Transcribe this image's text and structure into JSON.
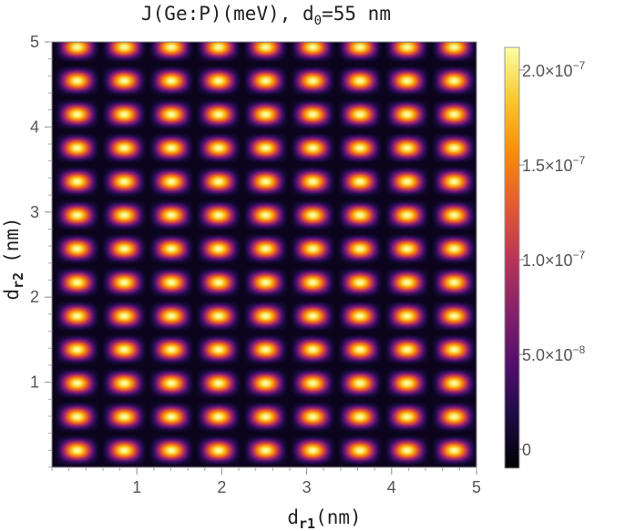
{
  "chart_data": {
    "type": "heatmap",
    "title": {
      "text": "J(Ge:P)(meV), d",
      "sub": "0",
      "tail": "=55 nm"
    },
    "xlabel": {
      "base": "d",
      "sub": "r1",
      "unit": "(nm)"
    },
    "ylabel": {
      "base": "d",
      "sub": "r2",
      "unit": "(nm)"
    },
    "xlim": [
      0,
      5
    ],
    "ylim": [
      0,
      5
    ],
    "xticks": [
      1,
      2,
      3,
      4,
      5
    ],
    "xtick_labels": [
      "1",
      "2",
      "3",
      "4",
      "5"
    ],
    "yticks": [
      1,
      2,
      3,
      4,
      5
    ],
    "ytick_labels": [
      "1",
      "2",
      "3",
      "4",
      "5"
    ],
    "colorbar": {
      "colormap": "inferno",
      "range": [
        -1e-08,
        2.12e-07
      ],
      "ticks": [
        {
          "value": 0,
          "label": "0",
          "exp": ""
        },
        {
          "value": 5e-08,
          "label": "5.0×10",
          "exp": "−8"
        },
        {
          "value": 1e-07,
          "label": "1.0×10",
          "exp": "−7"
        },
        {
          "value": 1.5e-07,
          "label": "1.5×10",
          "exp": "−7"
        },
        {
          "value": 2e-07,
          "label": "2.0×10",
          "exp": "−7"
        }
      ]
    },
    "pattern": {
      "description_free_params": true,
      "x_period_nm": 0.555,
      "x_phase_nm": 0.02,
      "y_period_nm": 0.395,
      "y_phase_nm": 0.0,
      "peak_value": 2.12e-07,
      "x_exponent": 2.0,
      "y_exponent": 2.4
    }
  },
  "colors": {
    "frame": "#888888",
    "text": "#222222",
    "tick_text": "#555555"
  }
}
